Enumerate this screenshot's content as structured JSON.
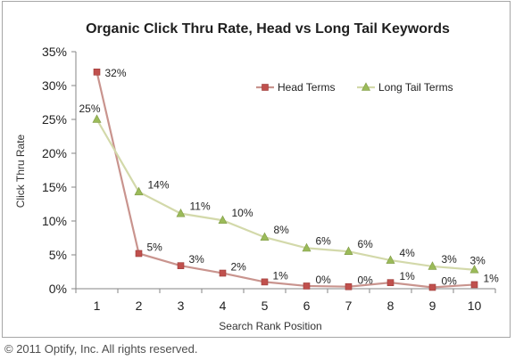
{
  "chart_data": {
    "type": "line",
    "title": "Organic Click Thru Rate, Head vs Long Tail Keywords",
    "xlabel": "Search Rank Position",
    "ylabel": "Click Thru Rate",
    "x": [
      1,
      2,
      3,
      4,
      5,
      6,
      7,
      8,
      9,
      10
    ],
    "y_ticks": [
      "0%",
      "5%",
      "10%",
      "15%",
      "20%",
      "25%",
      "30%",
      "35%"
    ],
    "ylim": [
      0,
      35
    ],
    "grid": false,
    "legend_position": "top-right",
    "series": [
      {
        "name": "Head Terms",
        "marker": "square",
        "line_color": "#c9948e",
        "marker_color": "#c0504d",
        "values": [
          32,
          5.2,
          3.4,
          2.3,
          1.0,
          0.4,
          0.3,
          0.9,
          0.2,
          0.6
        ],
        "labels": [
          "32%",
          "5%",
          "3%",
          "2%",
          "1%",
          "0%",
          "0%",
          "1%",
          "0%",
          "1%"
        ]
      },
      {
        "name": "Long Tail Terms",
        "marker": "triangle",
        "line_color": "#d3d9aa",
        "marker_color": "#9bbb59",
        "values": [
          25,
          14.3,
          11.1,
          10.1,
          7.6,
          6.0,
          5.5,
          4.2,
          3.3,
          2.8
        ],
        "labels": [
          "25%",
          "14%",
          "11%",
          "10%",
          "8%",
          "6%",
          "6%",
          "4%",
          "3%",
          "3%"
        ]
      }
    ]
  },
  "footer": {
    "copyright": "© 2011 Optify, Inc. All rights reserved."
  }
}
